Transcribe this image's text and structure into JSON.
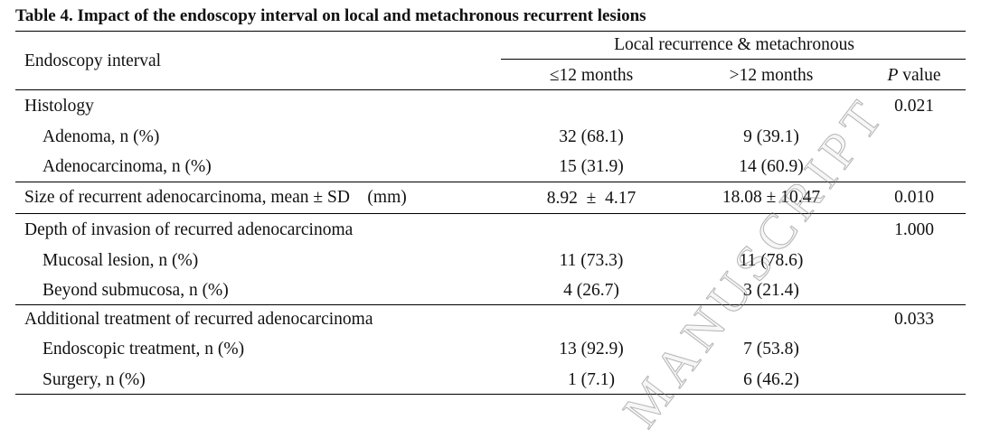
{
  "table": {
    "caption": "Table 4. Impact of the endoscopy interval on local and metachronous recurrent lesions",
    "row_header": "Endoscopy interval",
    "group_header": "Local recurrence & metachronous",
    "col_le12": "≤12 months",
    "col_gt12": ">12 months",
    "col_p_italic": "P",
    "col_p_rest": " value",
    "rows": [
      {
        "label": "Histology",
        "le12": "",
        "gt12": "",
        "p": "0.021"
      },
      {
        "label": "Adenoma, n (%)",
        "le12": "32 (68.1)",
        "gt12": "9 (39.1)",
        "p": ""
      },
      {
        "label": "Adenocarcinoma, n (%)",
        "le12": "15 (31.9)",
        "gt12": "14 (60.9)",
        "p": ""
      },
      {
        "label": "Size of recurrent adenocarcinoma, mean ± SD    (mm)",
        "le12": "8.92  ±  4.17",
        "gt12": "18.08 ± 10.47",
        "p": "0.010"
      },
      {
        "label": "Depth of invasion of recurred adenocarcinoma",
        "le12": "",
        "gt12": "",
        "p": "1.000"
      },
      {
        "label": "Mucosal lesion, n (%)",
        "le12": "11 (73.3)",
        "gt12": "11 (78.6)",
        "p": ""
      },
      {
        "label": "Beyond submucosa, n (%)",
        "le12": "4 (26.7)",
        "gt12": "3 (21.4)",
        "p": ""
      },
      {
        "label": "Additional treatment of recurred adenocarcinoma",
        "le12": "",
        "gt12": "",
        "p": "0.033"
      },
      {
        "label": "Endoscopic treatment, n (%)",
        "le12": "13 (92.9)",
        "gt12": "7 (53.8)",
        "p": ""
      },
      {
        "label": "Surgery, n (%)",
        "le12": "1 (7.1)",
        "gt12": "6 (46.2)",
        "p": ""
      }
    ]
  },
  "watermark": "MANUSCRIPT"
}
